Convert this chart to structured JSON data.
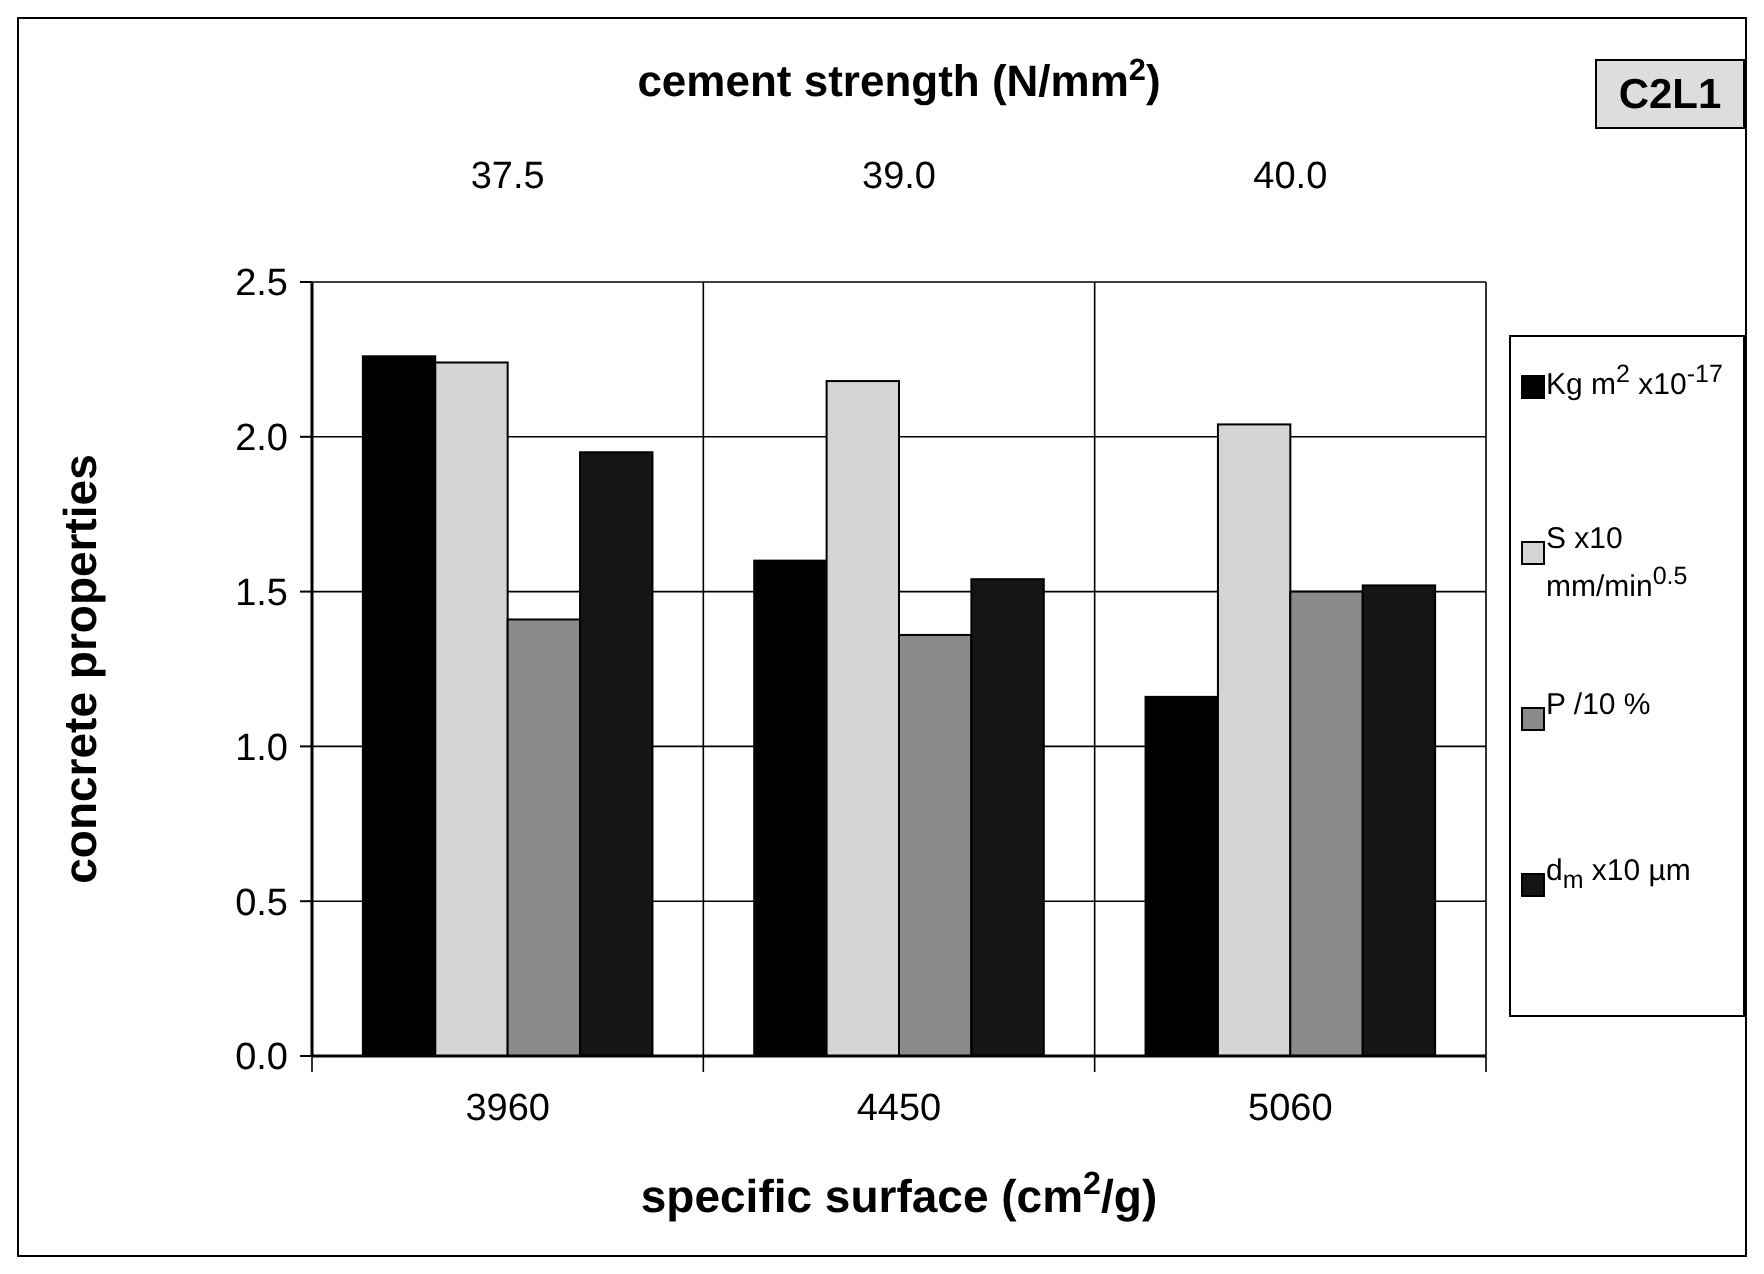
{
  "chart_data": {
    "type": "bar",
    "x2label": "cement strength (N/mm$^{2}$)",
    "xlabel": "specific surface (cm$^{2}$/g)",
    "ylabel": "concrete properties",
    "categories": [
      "3960",
      "4450",
      "5060"
    ],
    "series": [
      {
        "name": "Kg m$^{2}$ x10$^{-17}$",
        "color": "#000000",
        "values": [
          2.26,
          1.6,
          1.16
        ]
      },
      {
        "name": "S x10 mm/min$^{0.5}$",
        "color": "#d4d4d4",
        "values": [
          2.24,
          2.18,
          2.04
        ]
      },
      {
        "name": "P /10 %",
        "color": "#8a8a8a",
        "values": [
          1.41,
          1.36,
          1.5
        ]
      },
      {
        "name": "d$_{m}$ x10 µm",
        "color": "#151515",
        "values": [
          1.95,
          1.54,
          1.52
        ]
      }
    ],
    "ylim": [
      0,
      2.5
    ],
    "yticks": [
      {
        "value": 0,
        "label": "0.0"
      },
      {
        "value": 0.5,
        "label": "0.5"
      },
      {
        "value": 1,
        "label": "1.0"
      },
      {
        "value": 1.5,
        "label": "1.5"
      },
      {
        "value": 2,
        "label": "2.0"
      },
      {
        "value": 2.5,
        "label": "2.5"
      }
    ],
    "grid": true,
    "legend": "right",
    "annotations": [
      "37.5",
      "39.0",
      "40.0",
      "C2L1"
    ]
  }
}
